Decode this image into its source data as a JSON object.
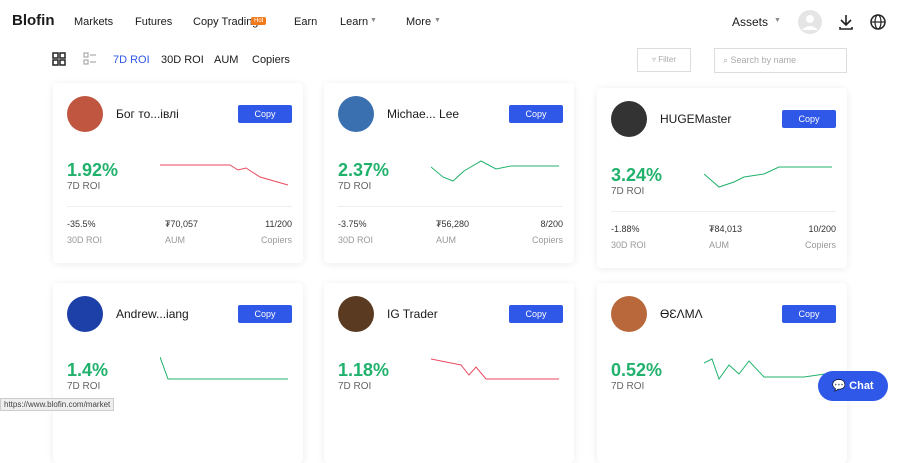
{
  "nav": {
    "logo": "Blofin",
    "items": [
      "Markets",
      "Futures",
      "Copy Trading",
      "Earn",
      "Learn",
      "More"
    ],
    "badge": "Hot",
    "assets": "Assets"
  },
  "tabs": [
    "7D ROI",
    "30D ROI",
    "AUM",
    "Copiers"
  ],
  "filter": "Filter",
  "search_placeholder": "Search by name",
  "cards": [
    {
      "name": "Бог то...івлі",
      "button": "Copy",
      "roi": "1.92%",
      "roi_label": "7D ROI",
      "stats": [
        {
          "value": "-35.5%",
          "label": "30D ROI"
        },
        {
          "value": "₮70,057",
          "label": "AUM"
        },
        {
          "value": "11/200",
          "label": "Copiers"
        }
      ]
    },
    {
      "name": "Michae... Lee",
      "button": "Copy",
      "roi": "2.37%",
      "roi_label": "7D ROI",
      "stats": [
        {
          "value": "-3.75%",
          "label": "30D ROI"
        },
        {
          "value": "₮56,280",
          "label": "AUM"
        },
        {
          "value": "8/200",
          "label": "Copiers"
        }
      ]
    },
    {
      "name": "HUGEMaster",
      "button": "Copy",
      "roi": "3.24%",
      "roi_label": "7D ROI",
      "stats": [
        {
          "value": "-1.88%",
          "label": "30D ROI"
        },
        {
          "value": "₮84,013",
          "label": "AUM"
        },
        {
          "value": "10/200",
          "label": "Copiers"
        }
      ]
    },
    {
      "name": "Andrew...iang",
      "button": "Copy",
      "roi": "1.4%",
      "roi_label": "7D ROI"
    },
    {
      "name": "IG Trader",
      "button": "Copy",
      "roi": "1.18%",
      "roi_label": "7D ROI"
    },
    {
      "name": "ӨƐɅMɅ",
      "button": "Copy",
      "roi": "0.52%",
      "roi_label": "7D ROI"
    }
  ],
  "status_url": "https://www.blofin.com/market",
  "chat": "Chat"
}
